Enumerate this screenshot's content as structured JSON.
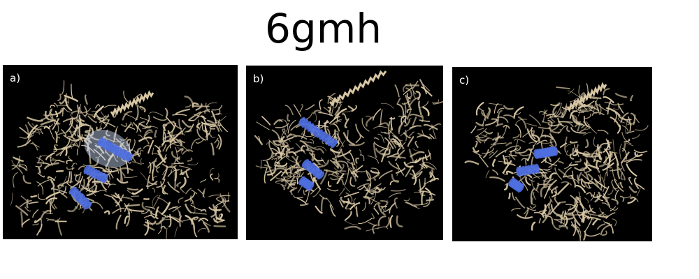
{
  "figure": {
    "title": "6gmh",
    "panels": [
      {
        "label": "a)",
        "protein_color": "#d8c7a4",
        "highlight_color": "#4f6fe0"
      },
      {
        "label": "b)",
        "protein_color": "#d8c7a4",
        "highlight_color": "#4f6fe0"
      },
      {
        "label": "c)",
        "protein_color": "#d8c7a4",
        "highlight_color": "#4f6fe0"
      }
    ]
  }
}
